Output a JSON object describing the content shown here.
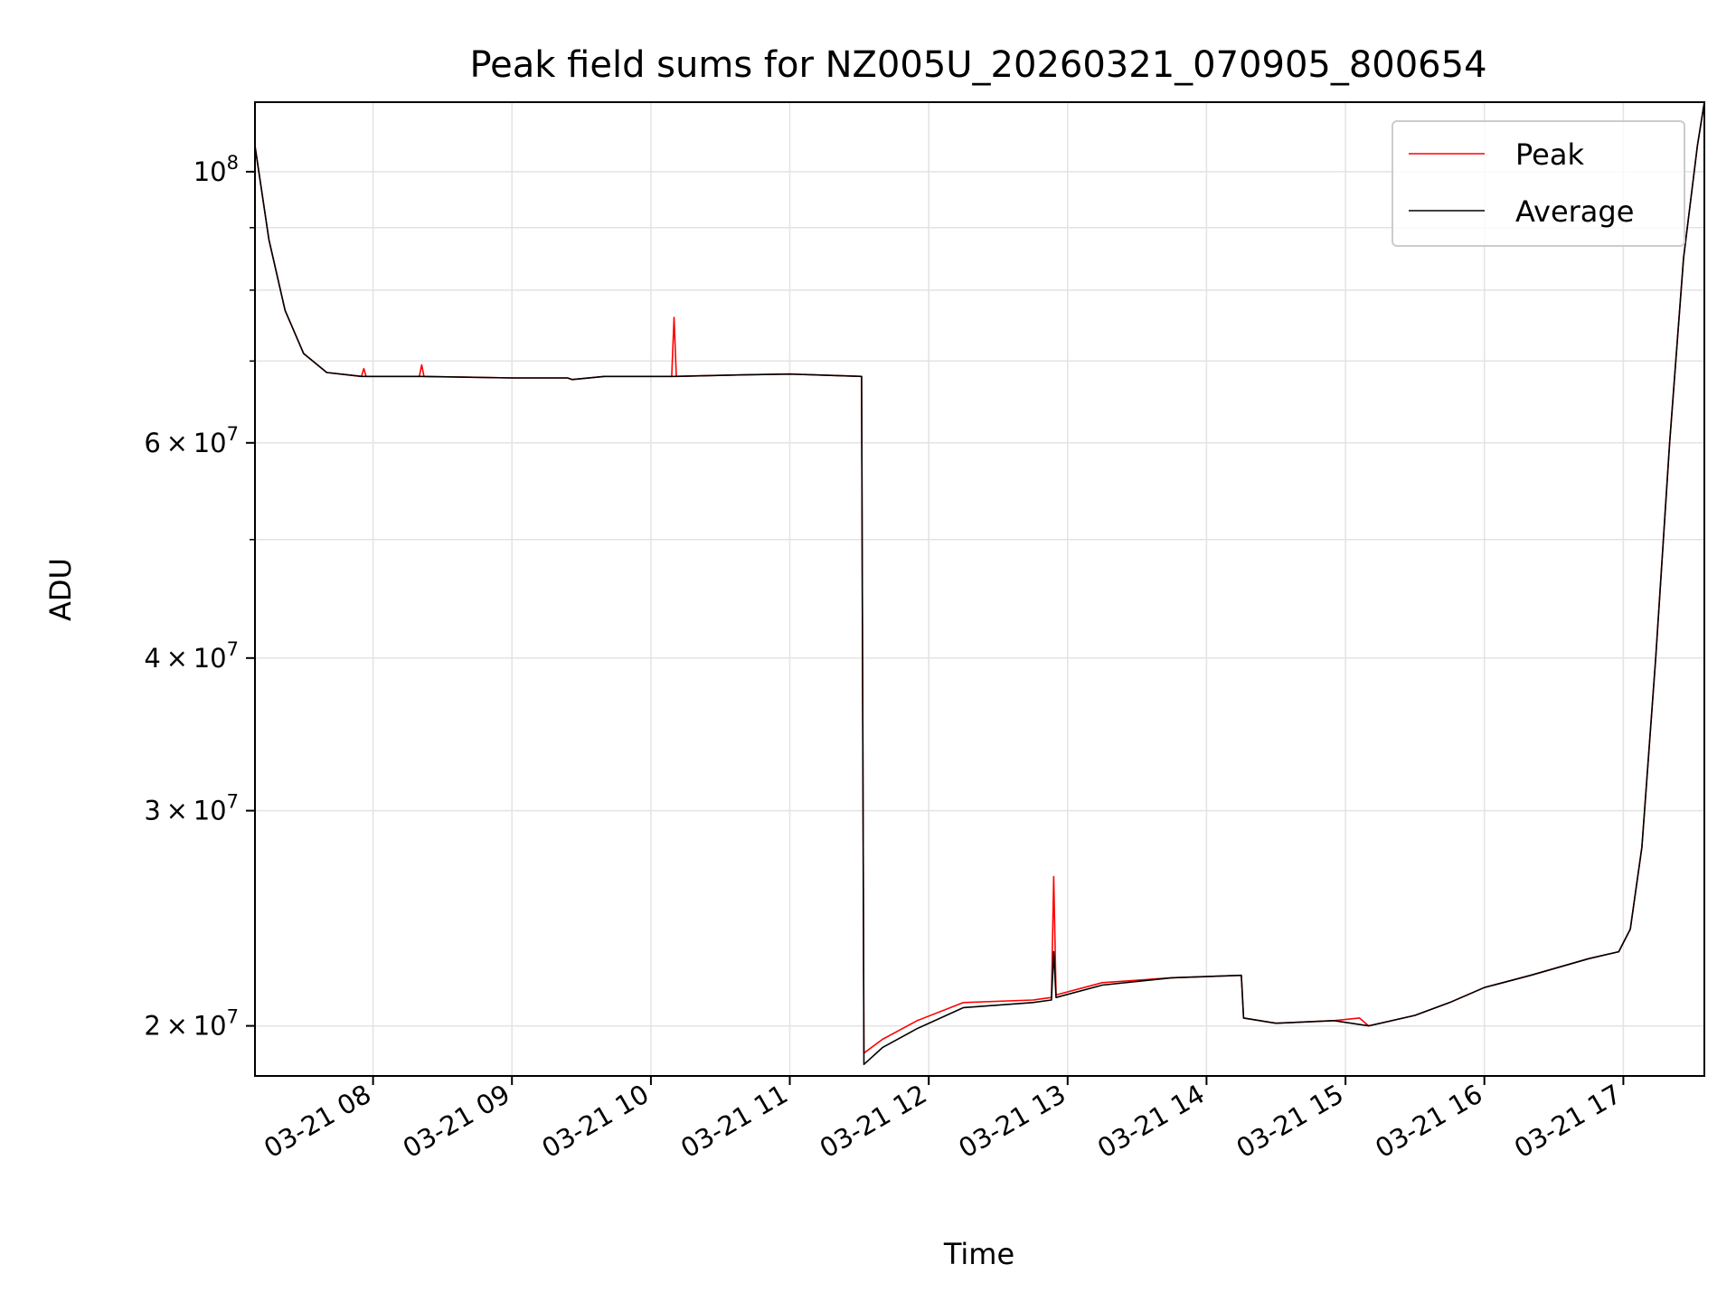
{
  "chart_data": {
    "type": "line",
    "title": "Peak field sums for NZ005U_20260321_070905_800654",
    "xlabel": "Time",
    "ylabel": "ADU",
    "yscale": "log",
    "ylim": [
      18200000,
      114000000
    ],
    "xlim": [
      "03-21 07:09",
      "03-21 17:35"
    ],
    "x_ticks": [
      "03-21 08",
      "03-21 09",
      "03-21 10",
      "03-21 11",
      "03-21 12",
      "03-21 13",
      "03-21 14",
      "03-21 15",
      "03-21 16",
      "03-21 17"
    ],
    "y_ticks_major": [
      {
        "value": 20000000,
        "label": "2 × 10^7",
        "mantissa": "2",
        "exp": "7"
      },
      {
        "value": 30000000,
        "label": "3 × 10^7",
        "mantissa": "3",
        "exp": "7"
      },
      {
        "value": 40000000,
        "label": "4 × 10^7",
        "mantissa": "4",
        "exp": "7"
      },
      {
        "value": 60000000,
        "label": "6 × 10^7",
        "mantissa": "6",
        "exp": "7"
      },
      {
        "value": 100000000,
        "label": "10^8",
        "mantissa": "",
        "exp": "8"
      }
    ],
    "y_ticks_minor": [
      50000000,
      70000000,
      80000000,
      90000000
    ],
    "grid": true,
    "legend_position": "top-right",
    "series": [
      {
        "name": "Peak",
        "color": "#ff0000",
        "points": [
          [
            "03-21 07:09",
            105000000
          ],
          [
            "03-21 07:15",
            88000000
          ],
          [
            "03-21 07:22",
            77000000
          ],
          [
            "03-21 07:30",
            71000000
          ],
          [
            "03-21 07:40",
            68500000
          ],
          [
            "03-21 07:55",
            68000000
          ],
          [
            "03-21 07:56",
            69000000
          ],
          [
            "03-21 07:57",
            68000000
          ],
          [
            "03-21 08:20",
            68000000
          ],
          [
            "03-21 08:21",
            69500000
          ],
          [
            "03-21 08:22",
            68000000
          ],
          [
            "03-21 09:00",
            67800000
          ],
          [
            "03-21 09:24",
            67800000
          ],
          [
            "03-21 09:26",
            67600000
          ],
          [
            "03-21 09:40",
            68000000
          ],
          [
            "03-21 10:09",
            68000000
          ],
          [
            "03-21 10:10",
            76000000
          ],
          [
            "03-21 10:11",
            68000000
          ],
          [
            "03-21 10:40",
            68200000
          ],
          [
            "03-21 11:00",
            68300000
          ],
          [
            "03-21 11:31",
            68000000
          ],
          [
            "03-21 11:32",
            19000000
          ],
          [
            "03-21 11:40",
            19500000
          ],
          [
            "03-21 11:55",
            20200000
          ],
          [
            "03-21 12:15",
            20900000
          ],
          [
            "03-21 12:45",
            21000000
          ],
          [
            "03-21 12:53",
            21100000
          ],
          [
            "03-21 12:54",
            26500000
          ],
          [
            "03-21 12:55",
            21200000
          ],
          [
            "03-21 13:15",
            21700000
          ],
          [
            "03-21 13:45",
            21900000
          ],
          [
            "03-21 14:15",
            22000000
          ],
          [
            "03-21 14:16",
            20300000
          ],
          [
            "03-21 14:30",
            20100000
          ],
          [
            "03-21 14:55",
            20200000
          ],
          [
            "03-21 15:06",
            20300000
          ],
          [
            "03-21 15:10",
            20000000
          ],
          [
            "03-21 15:30",
            20400000
          ],
          [
            "03-21 15:45",
            20900000
          ],
          [
            "03-21 16:00",
            21500000
          ],
          [
            "03-21 16:20",
            22000000
          ],
          [
            "03-21 16:45",
            22700000
          ],
          [
            "03-21 16:58",
            23000000
          ],
          [
            "03-21 17:03",
            24000000
          ],
          [
            "03-21 17:08",
            28000000
          ],
          [
            "03-21 17:14",
            40000000
          ],
          [
            "03-21 17:20",
            60000000
          ],
          [
            "03-21 17:26",
            85000000
          ],
          [
            "03-21 17:32",
            105000000
          ],
          [
            "03-21 17:35",
            114000000
          ]
        ]
      },
      {
        "name": "Average",
        "color": "#000000",
        "points": [
          [
            "03-21 07:09",
            105000000
          ],
          [
            "03-21 07:15",
            88000000
          ],
          [
            "03-21 07:22",
            77000000
          ],
          [
            "03-21 07:30",
            71000000
          ],
          [
            "03-21 07:40",
            68500000
          ],
          [
            "03-21 07:55",
            68000000
          ],
          [
            "03-21 08:20",
            68000000
          ],
          [
            "03-21 09:00",
            67800000
          ],
          [
            "03-21 09:24",
            67800000
          ],
          [
            "03-21 09:26",
            67600000
          ],
          [
            "03-21 09:40",
            68000000
          ],
          [
            "03-21 10:10",
            68000000
          ],
          [
            "03-21 10:40",
            68200000
          ],
          [
            "03-21 11:00",
            68300000
          ],
          [
            "03-21 11:31",
            68000000
          ],
          [
            "03-21 11:32",
            18600000
          ],
          [
            "03-21 11:40",
            19200000
          ],
          [
            "03-21 11:55",
            19900000
          ],
          [
            "03-21 12:15",
            20700000
          ],
          [
            "03-21 12:45",
            20900000
          ],
          [
            "03-21 12:53",
            21000000
          ],
          [
            "03-21 12:54",
            23000000
          ],
          [
            "03-21 12:55",
            21100000
          ],
          [
            "03-21 13:15",
            21600000
          ],
          [
            "03-21 13:45",
            21900000
          ],
          [
            "03-21 14:15",
            22000000
          ],
          [
            "03-21 14:16",
            20300000
          ],
          [
            "03-21 14:30",
            20100000
          ],
          [
            "03-21 14:55",
            20200000
          ],
          [
            "03-21 15:10",
            20000000
          ],
          [
            "03-21 15:30",
            20400000
          ],
          [
            "03-21 15:45",
            20900000
          ],
          [
            "03-21 16:00",
            21500000
          ],
          [
            "03-21 16:20",
            22000000
          ],
          [
            "03-21 16:45",
            22700000
          ],
          [
            "03-21 16:58",
            23000000
          ],
          [
            "03-21 17:03",
            24000000
          ],
          [
            "03-21 17:08",
            28000000
          ],
          [
            "03-21 17:14",
            40000000
          ],
          [
            "03-21 17:20",
            60000000
          ],
          [
            "03-21 17:26",
            85000000
          ],
          [
            "03-21 17:32",
            105000000
          ],
          [
            "03-21 17:35",
            114000000
          ]
        ]
      }
    ]
  }
}
